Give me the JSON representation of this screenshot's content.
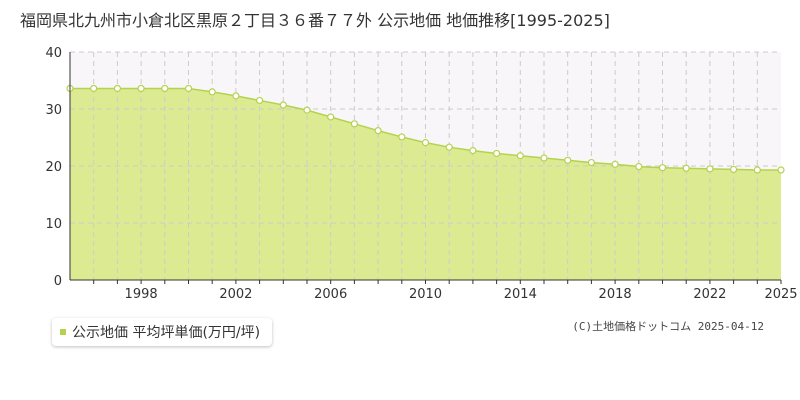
{
  "title": "福岡県北九州市小倉北区黒原２丁目３６番７７外 公示地価 地価推移[1995-2025]",
  "legend_label": "公示地価 平均坪単価(万円/坪)",
  "copyright": "(C)土地価格ドットコム 2025-04-12",
  "colors": {
    "fill": "#dceb91",
    "line": "#b4d250",
    "marker_fill": "#ffffff",
    "marker_stroke": "#b4d250",
    "grid": "#cccccc",
    "axis": "#333333",
    "upper_shade": "#f8f6f8",
    "legend_swatch": "#b4d250"
  },
  "chart_data": {
    "type": "area",
    "title": "福岡県北九州市小倉北区黒原２丁目３６番７７外 公示地価 地価推移[1995-2025]",
    "xlabel": "",
    "ylabel": "",
    "xlim": [
      1995,
      2025
    ],
    "ylim": [
      0,
      40
    ],
    "yticks": [
      0,
      10,
      20,
      30,
      40
    ],
    "xtick_labels": [
      "1998",
      "2002",
      "2006",
      "2010",
      "2014",
      "2018",
      "2022",
      "2025"
    ],
    "grid": true,
    "legend_position": "bottom-left",
    "series": [
      {
        "name": "公示地価 平均坪単価(万円/坪)",
        "x": [
          1995,
          1996,
          1997,
          1998,
          1999,
          2000,
          2001,
          2002,
          2003,
          2004,
          2005,
          2006,
          2007,
          2008,
          2009,
          2010,
          2011,
          2012,
          2013,
          2014,
          2015,
          2016,
          2017,
          2018,
          2019,
          2020,
          2021,
          2022,
          2023,
          2024,
          2025
        ],
        "values": [
          33.6,
          33.6,
          33.6,
          33.6,
          33.6,
          33.6,
          33.0,
          32.3,
          31.5,
          30.7,
          29.8,
          28.6,
          27.4,
          26.2,
          25.1,
          24.1,
          23.3,
          22.7,
          22.2,
          21.8,
          21.4,
          21.0,
          20.6,
          20.3,
          19.9,
          19.7,
          19.6,
          19.5,
          19.4,
          19.3,
          19.3
        ]
      }
    ]
  }
}
